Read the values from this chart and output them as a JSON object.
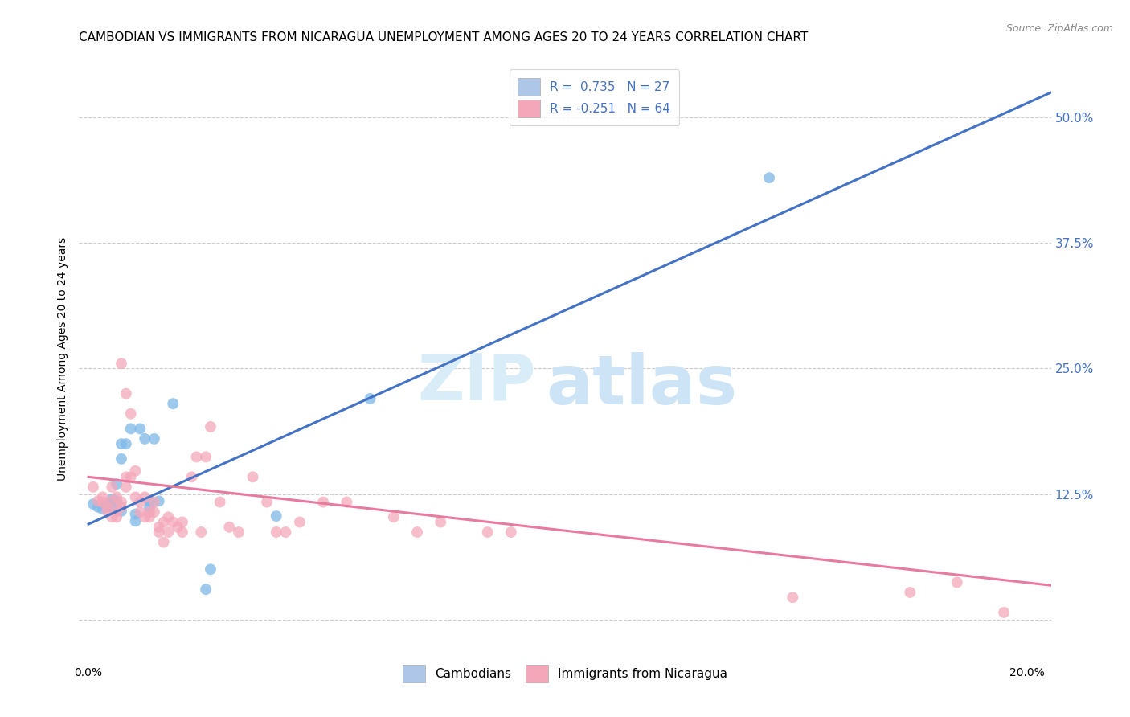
{
  "title": "CAMBODIAN VS IMMIGRANTS FROM NICARAGUA UNEMPLOYMENT AMONG AGES 20 TO 24 YEARS CORRELATION CHART",
  "source": "Source: ZipAtlas.com",
  "ylabel": "Unemployment Among Ages 20 to 24 years",
  "xlim": [
    -0.002,
    0.205
  ],
  "ylim": [
    -0.04,
    0.56
  ],
  "xticks": [
    0.0,
    0.05,
    0.1,
    0.15,
    0.2
  ],
  "xticklabels": [
    "0.0%",
    "",
    "",
    "",
    "20.0%"
  ],
  "yticks_right": [
    0.0,
    0.125,
    0.25,
    0.375,
    0.5
  ],
  "yticklabels_right": [
    "",
    "12.5%",
    "25.0%",
    "37.5%",
    "50.0%"
  ],
  "watermark_zip": "ZIP",
  "watermark_atlas": "atlas",
  "legend_entries": [
    {
      "label": "R =  0.735   N = 27",
      "color": "#aec6e8"
    },
    {
      "label": "R = -0.251   N = 64",
      "color": "#f4a7b9"
    }
  ],
  "legend_bottom": [
    {
      "label": "Cambodians",
      "color": "#aec6e8"
    },
    {
      "label": "Immigrants from Nicaragua",
      "color": "#f4a7b9"
    }
  ],
  "cambodian_scatter": [
    [
      0.001,
      0.115
    ],
    [
      0.002,
      0.112
    ],
    [
      0.003,
      0.11
    ],
    [
      0.004,
      0.115
    ],
    [
      0.005,
      0.12
    ],
    [
      0.005,
      0.11
    ],
    [
      0.006,
      0.135
    ],
    [
      0.006,
      0.118
    ],
    [
      0.007,
      0.16
    ],
    [
      0.007,
      0.108
    ],
    [
      0.007,
      0.175
    ],
    [
      0.008,
      0.175
    ],
    [
      0.009,
      0.19
    ],
    [
      0.01,
      0.105
    ],
    [
      0.01,
      0.098
    ],
    [
      0.011,
      0.19
    ],
    [
      0.012,
      0.18
    ],
    [
      0.013,
      0.118
    ],
    [
      0.013,
      0.112
    ],
    [
      0.014,
      0.18
    ],
    [
      0.015,
      0.118
    ],
    [
      0.018,
      0.215
    ],
    [
      0.025,
      0.03
    ],
    [
      0.026,
      0.05
    ],
    [
      0.04,
      0.103
    ],
    [
      0.06,
      0.22
    ],
    [
      0.145,
      0.44
    ]
  ],
  "nicaragua_scatter": [
    [
      0.001,
      0.132
    ],
    [
      0.002,
      0.118
    ],
    [
      0.003,
      0.122
    ],
    [
      0.003,
      0.117
    ],
    [
      0.004,
      0.112
    ],
    [
      0.004,
      0.108
    ],
    [
      0.005,
      0.102
    ],
    [
      0.005,
      0.118
    ],
    [
      0.005,
      0.132
    ],
    [
      0.006,
      0.122
    ],
    [
      0.006,
      0.102
    ],
    [
      0.006,
      0.108
    ],
    [
      0.007,
      0.117
    ],
    [
      0.007,
      0.112
    ],
    [
      0.007,
      0.255
    ],
    [
      0.008,
      0.225
    ],
    [
      0.008,
      0.142
    ],
    [
      0.008,
      0.132
    ],
    [
      0.009,
      0.142
    ],
    [
      0.009,
      0.205
    ],
    [
      0.01,
      0.148
    ],
    [
      0.01,
      0.122
    ],
    [
      0.011,
      0.117
    ],
    [
      0.011,
      0.107
    ],
    [
      0.012,
      0.102
    ],
    [
      0.012,
      0.122
    ],
    [
      0.013,
      0.102
    ],
    [
      0.013,
      0.107
    ],
    [
      0.014,
      0.107
    ],
    [
      0.014,
      0.117
    ],
    [
      0.015,
      0.087
    ],
    [
      0.015,
      0.092
    ],
    [
      0.016,
      0.077
    ],
    [
      0.016,
      0.097
    ],
    [
      0.017,
      0.087
    ],
    [
      0.017,
      0.102
    ],
    [
      0.018,
      0.097
    ],
    [
      0.019,
      0.092
    ],
    [
      0.02,
      0.087
    ],
    [
      0.02,
      0.097
    ],
    [
      0.022,
      0.142
    ],
    [
      0.023,
      0.162
    ],
    [
      0.024,
      0.087
    ],
    [
      0.025,
      0.162
    ],
    [
      0.026,
      0.192
    ],
    [
      0.028,
      0.117
    ],
    [
      0.03,
      0.092
    ],
    [
      0.032,
      0.087
    ],
    [
      0.035,
      0.142
    ],
    [
      0.038,
      0.117
    ],
    [
      0.04,
      0.087
    ],
    [
      0.042,
      0.087
    ],
    [
      0.045,
      0.097
    ],
    [
      0.05,
      0.117
    ],
    [
      0.055,
      0.117
    ],
    [
      0.065,
      0.102
    ],
    [
      0.07,
      0.087
    ],
    [
      0.075,
      0.097
    ],
    [
      0.085,
      0.087
    ],
    [
      0.09,
      0.087
    ],
    [
      0.15,
      0.022
    ],
    [
      0.175,
      0.027
    ],
    [
      0.185,
      0.037
    ],
    [
      0.195,
      0.007
    ]
  ],
  "blue_line": [
    [
      0.0,
      0.095
    ],
    [
      0.205,
      0.525
    ]
  ],
  "pink_line": [
    [
      0.0,
      0.142
    ],
    [
      0.205,
      0.034
    ]
  ],
  "blue_scatter_color": "#7db8e8",
  "pink_scatter_color": "#f4a7b9",
  "blue_line_color": "#4472c4",
  "pink_line_color": "#e87a9f",
  "background_color": "#ffffff",
  "grid_color": "#cccccc",
  "title_fontsize": 11,
  "axis_label_fontsize": 10
}
